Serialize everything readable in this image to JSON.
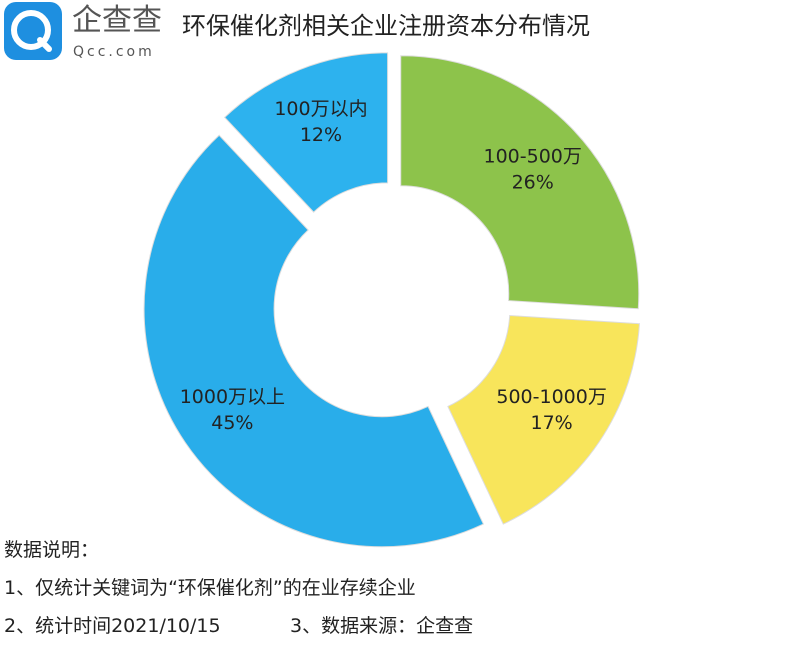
{
  "header": {
    "logo_text": "企查查",
    "logo_sub": "Qcc.com"
  },
  "chart_data": {
    "type": "donut",
    "title": "环保催化剂相关企业注册资本分布情况",
    "categories": [
      "100-500万",
      "500-1000万",
      "1000万以上",
      "100万以内"
    ],
    "values": [
      26,
      17,
      45,
      12
    ],
    "value_labels": [
      "26%",
      "17%",
      "45%",
      "12%"
    ],
    "colors": [
      "#8dc34b",
      "#f8e55b",
      "#29adea",
      "#2db2ee"
    ]
  },
  "notes": {
    "heading": "数据说明：",
    "lines": [
      "1、仅统计关键词为“环保催化剂”的在业存续企业",
      "2、统计时间2021/10/15",
      "3、数据来源：企查查"
    ]
  }
}
